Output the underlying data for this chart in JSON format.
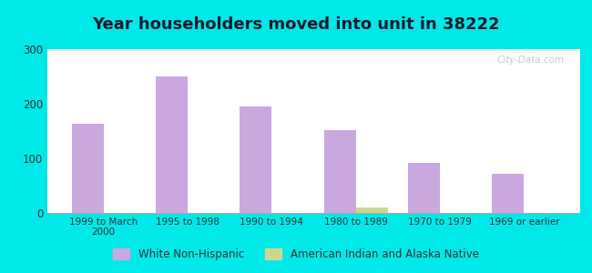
{
  "title": "Year householders moved into unit in 38222",
  "categories": [
    "1999 to March\n2000",
    "1995 to 1998",
    "1990 to 1994",
    "1980 to 1989",
    "1970 to 1979",
    "1969 or earlier"
  ],
  "white_non_hispanic": [
    163,
    250,
    195,
    152,
    92,
    72
  ],
  "american_indian": [
    0,
    0,
    0,
    10,
    0,
    0
  ],
  "white_color": "#c9a8e0",
  "american_color": "#ccd890",
  "ylim": [
    0,
    300
  ],
  "yticks": [
    0,
    100,
    200,
    300
  ],
  "bg_outer": "#00e8e8",
  "bg_plot_top": "#e8f4ee",
  "bg_plot_bottom": "#d4ecd4",
  "watermark": "City-Data.com",
  "legend_white": "White Non-Hispanic",
  "legend_indian": "American Indian and Alaska Native",
  "title_fontsize": 13,
  "bar_width": 0.38
}
